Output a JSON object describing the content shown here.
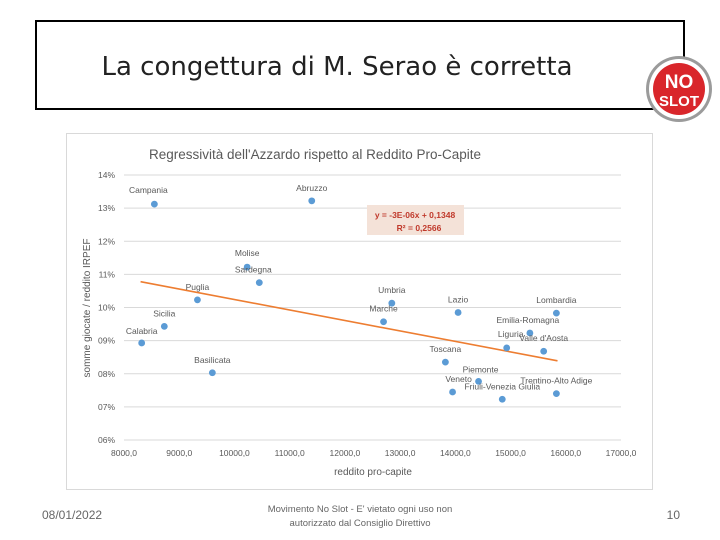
{
  "slide": {
    "title": "La congettura di M. Serao è corretta",
    "logo_text_line1": "NO",
    "logo_text_line2": "SLOT",
    "footer_date": "08/01/2022",
    "footer_center_line1": "Movimento No Slot - E' vietato ogni uso non",
    "footer_center_line2": "autorizzato dal Consiglio Direttivo",
    "page_number": "10"
  },
  "colors": {
    "points": "#5b9bd5",
    "trendline": "#ed7d31",
    "equation_text": "#c0392b",
    "logo_red": "#d9262b"
  },
  "chart_data": {
    "type": "scatter",
    "title": "Regressività dell'Azzardo rispetto al Reddito Pro-Capite",
    "xlabel": "reddito pro-capite",
    "ylabel": "somme giocate / reddito IRPEF",
    "xlim": [
      8000,
      17000
    ],
    "ylim": [
      0.06,
      0.14
    ],
    "x_ticks": [
      8000,
      9000,
      10000,
      11000,
      12000,
      13000,
      14000,
      15000,
      16000,
      17000
    ],
    "x_tick_labels": [
      "8000,0",
      "9000,0",
      "10000,0",
      "11000,0",
      "12000,0",
      "13000,0",
      "14000,0",
      "15000,0",
      "16000,0",
      "17000,0"
    ],
    "y_ticks": [
      0.06,
      0.07,
      0.08,
      0.09,
      0.1,
      0.11,
      0.12,
      0.13,
      0.14
    ],
    "y_tick_labels": [
      "06%",
      "07%",
      "08%",
      "09%",
      "10%",
      "11%",
      "12%",
      "13%",
      "14%"
    ],
    "grid": "horizontal",
    "points": [
      {
        "label": "Campania",
        "x": 8550,
        "y": 0.1312
      },
      {
        "label": "Abruzzo",
        "x": 11400,
        "y": 0.1322
      },
      {
        "label": "Molise",
        "x": 10230,
        "y": 0.1122
      },
      {
        "label": "Sardegna",
        "x": 10450,
        "y": 0.1075
      },
      {
        "label": "Puglia",
        "x": 9330,
        "y": 0.1023
      },
      {
        "label": "Sicilia",
        "x": 8730,
        "y": 0.0943
      },
      {
        "label": "Calabria",
        "x": 8320,
        "y": 0.0893
      },
      {
        "label": "Basilicata",
        "x": 9600,
        "y": 0.0803
      },
      {
        "label": "Umbria",
        "x": 12850,
        "y": 0.1013
      },
      {
        "label": "Marche",
        "x": 12700,
        "y": 0.0957
      },
      {
        "label": "Lazio",
        "x": 14050,
        "y": 0.0985
      },
      {
        "label": "Toscana",
        "x": 13820,
        "y": 0.0835
      },
      {
        "label": "Veneto",
        "x": 13950,
        "y": 0.0745
      },
      {
        "label": "Piemonte",
        "x": 14420,
        "y": 0.0777
      },
      {
        "label": "Friuli-Venezia Giulia",
        "x": 14850,
        "y": 0.0723
      },
      {
        "label": "Liguria",
        "x": 14930,
        "y": 0.0878
      },
      {
        "label": "Emilia-Romagna",
        "x": 15350,
        "y": 0.0923
      },
      {
        "label": "Valle d'Aosta",
        "x": 15600,
        "y": 0.0868
      },
      {
        "label": "Lombardia",
        "x": 15830,
        "y": 0.0983
      },
      {
        "label": "Trentino-Alto Adige",
        "x": 15830,
        "y": 0.074
      }
    ],
    "trendline": {
      "x": [
        8300,
        15850
      ],
      "y": [
        0.1078,
        0.0839
      ],
      "equation": "y = -3E-06x + 0,1348",
      "r_squared": "R² = 0,2566"
    }
  }
}
